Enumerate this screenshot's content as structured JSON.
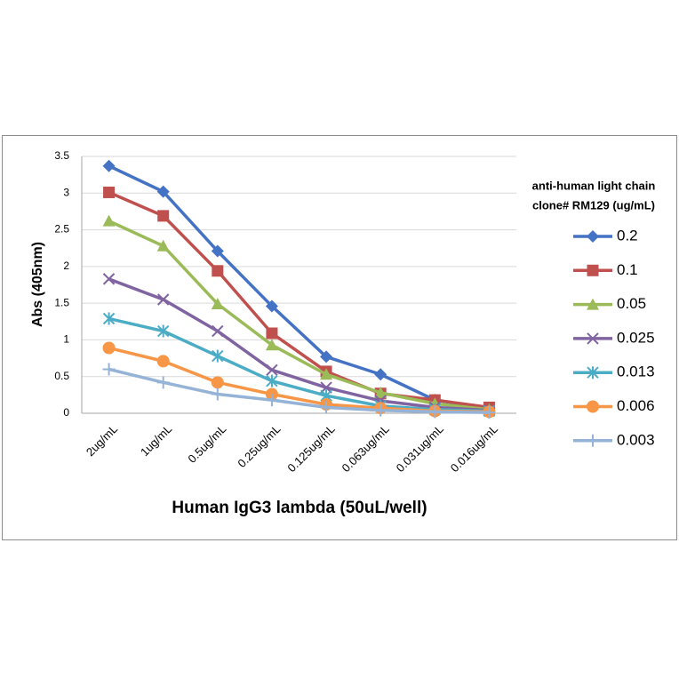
{
  "chart_data": {
    "type": "line",
    "x_label": "Human IgG3 lambda (50uL/well)",
    "y_label": "Abs (405nm)",
    "legend_title": [
      "anti-human light chain",
      "clone# RM129 (ug/mL)"
    ],
    "legend_position": "right",
    "categories": [
      "2ug/mL",
      "1ug/mL",
      "0.5ug/mL",
      "0.25ug/mL",
      "0.125ug/mL",
      "0.063ug/mL",
      "0.031ug/mL",
      "0.016ug/mL"
    ],
    "series": [
      {
        "name": "0.2",
        "color": "#4472c4",
        "marker": "diamond",
        "values": [
          3.37,
          3.02,
          2.21,
          1.46,
          0.77,
          0.53,
          0.18,
          0.07
        ]
      },
      {
        "name": "0.1",
        "color": "#c0504d",
        "marker": "square",
        "values": [
          3.01,
          2.69,
          1.94,
          1.09,
          0.57,
          0.27,
          0.18,
          0.08
        ]
      },
      {
        "name": "0.05",
        "color": "#9bbb59",
        "marker": "triangle",
        "values": [
          2.62,
          2.28,
          1.49,
          0.93,
          0.53,
          0.28,
          0.13,
          0.05
        ]
      },
      {
        "name": "0.025",
        "color": "#8064a2",
        "marker": "x",
        "values": [
          1.83,
          1.55,
          1.12,
          0.59,
          0.35,
          0.17,
          0.08,
          0.04
        ]
      },
      {
        "name": "0.013",
        "color": "#4bacc6",
        "marker": "star",
        "values": [
          1.29,
          1.12,
          0.78,
          0.44,
          0.24,
          0.1,
          0.05,
          0.03
        ]
      },
      {
        "name": "0.006",
        "color": "#f79646",
        "marker": "circle",
        "values": [
          0.89,
          0.71,
          0.42,
          0.26,
          0.12,
          0.07,
          0.03,
          0.02
        ]
      },
      {
        "name": "0.003",
        "color": "#95b3d7",
        "marker": "plus",
        "values": [
          0.6,
          0.42,
          0.26,
          0.18,
          0.08,
          0.04,
          0.02,
          0.01
        ]
      }
    ],
    "ylim": [
      0,
      3.5
    ],
    "yticks": [
      0,
      0.5,
      1,
      1.5,
      2,
      2.5,
      3,
      3.5
    ],
    "grid": true
  }
}
